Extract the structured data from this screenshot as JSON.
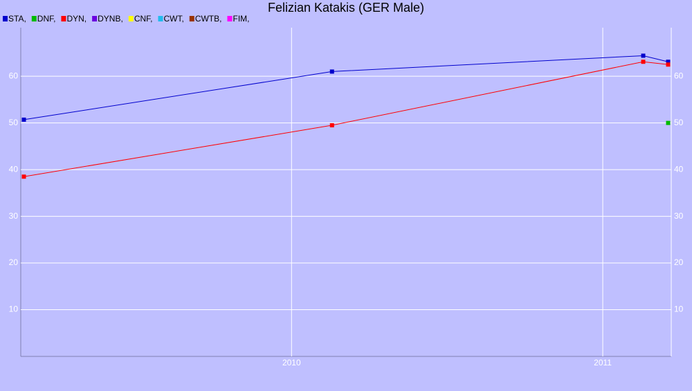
{
  "chart_data": {
    "type": "line",
    "title": "Felizian Katakis (GER Male)",
    "x": [
      2009.14,
      2010.13,
      2011.13,
      2011.21
    ],
    "xlim": [
      2009.13,
      2011.22
    ],
    "xticks": [
      2010,
      2011
    ],
    "ylim": [
      0,
      70.4
    ],
    "yticks": [
      10,
      20,
      30,
      40,
      50,
      60
    ],
    "grid": true,
    "series": [
      {
        "name": "STA,",
        "color": "#0000cc",
        "values": [
          50.7,
          61,
          64.4,
          63.1
        ]
      },
      {
        "name": "DNF,",
        "color": "#00bb00",
        "values": [
          null,
          null,
          null,
          50
        ]
      },
      {
        "name": "DYN,",
        "color": "#ff0000",
        "values": [
          38.5,
          49.5,
          63.1,
          62.5
        ]
      },
      {
        "name": "DYNB,",
        "color": "#6a00e0",
        "values": [
          null,
          null,
          null,
          null
        ]
      },
      {
        "name": "CNF,",
        "color": "#ffff00",
        "values": [
          null,
          null,
          null,
          null
        ]
      },
      {
        "name": "CWT,",
        "color": "#22bbee",
        "values": [
          null,
          null,
          null,
          null
        ]
      },
      {
        "name": "CWTB,",
        "color": "#993300",
        "values": [
          null,
          null,
          null,
          null
        ]
      },
      {
        "name": "FIM,",
        "color": "#ff00ff",
        "values": [
          null,
          null,
          null,
          null
        ]
      }
    ]
  }
}
